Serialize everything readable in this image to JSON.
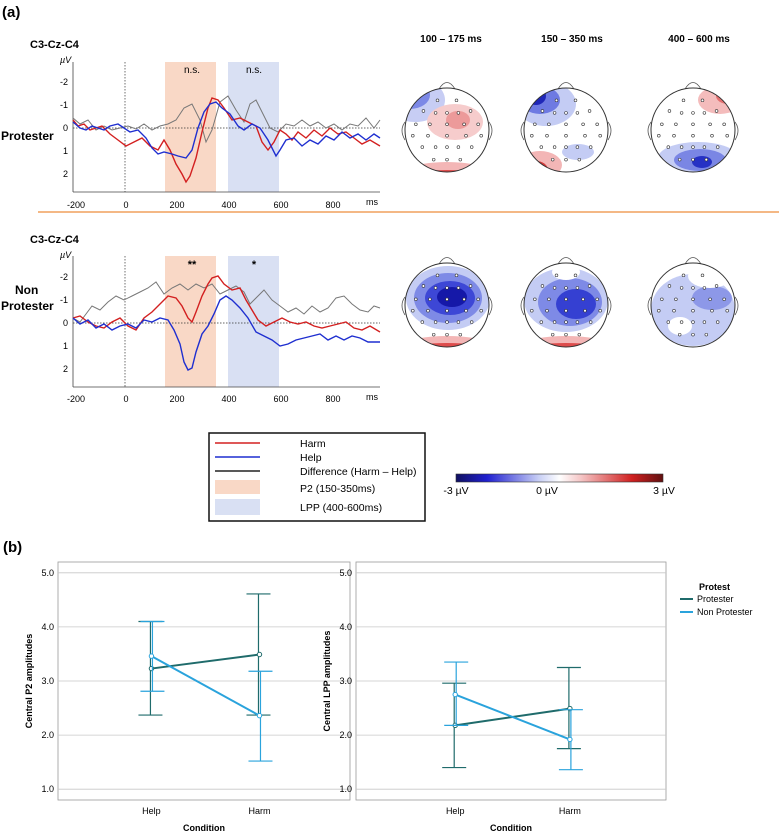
{
  "panel_a": {
    "label": "(a)",
    "erp_plots": [
      {
        "channel_label": "C3-Cz-C4",
        "group_label_lines": [
          "Protester"
        ],
        "y_unit": "µV",
        "y_ticks": [
          "-2",
          "-1",
          "0",
          "1",
          "2"
        ],
        "x_ticks": [
          "-200",
          "0",
          "200",
          "400",
          "600",
          "800"
        ],
        "x_unit": "ms",
        "p2_significance": "n.s.",
        "lpp_significance": "n.s."
      },
      {
        "channel_label": "C3-Cz-C4",
        "group_label_lines": [
          "Non",
          "Protester"
        ],
        "y_unit": "µV",
        "y_ticks": [
          "-2",
          "-1",
          "0",
          "1",
          "2"
        ],
        "x_ticks": [
          "-200",
          "0",
          "200",
          "400",
          "600",
          "800"
        ],
        "x_unit": "ms",
        "p2_significance": "**",
        "lpp_significance": "*"
      }
    ],
    "topo_headers": [
      "100 – 175 ms",
      "150 – 350  ms",
      "400 – 600 ms"
    ],
    "legend": {
      "items": [
        {
          "label": "Harm",
          "color": "#d32020",
          "kind": "line"
        },
        {
          "label": "Help",
          "color": "#1f2fd0",
          "kind": "line"
        },
        {
          "label": "Difference (Harm – Help)",
          "color": "#222222",
          "kind": "line"
        },
        {
          "label": "P2   (150-350ms)",
          "color": "#f9d8c6",
          "kind": "box"
        },
        {
          "label": "LPP (400-600ms)",
          "color": "#d9e0f3",
          "kind": "box"
        }
      ]
    },
    "colorbar": {
      "min_label": "-3 µV",
      "mid_label": "0 µV",
      "max_label": "3 µV"
    }
  },
  "panel_b": {
    "label": "(b)",
    "chart_data": [
      {
        "type": "line",
        "categories": [
          "Help",
          "Harm"
        ],
        "xlabel": "Condition",
        "ylabel": "Central P2 amplitudes",
        "ylim": [
          0.8,
          5.2
        ],
        "y_ticks": [
          "1.0",
          "2.0",
          "3.0",
          "4.0",
          "5.0"
        ],
        "series": [
          {
            "name": "Protester",
            "values": [
              3.23,
              3.49
            ],
            "err_low": [
              2.37,
              2.37
            ],
            "err_high": [
              4.1,
              4.61
            ]
          },
          {
            "name": "Non Protester",
            "values": [
              3.46,
              2.36
            ],
            "err_low": [
              2.81,
              1.52
            ],
            "err_high": [
              4.1,
              3.18
            ]
          }
        ]
      },
      {
        "type": "line",
        "categories": [
          "Help",
          "Harm"
        ],
        "xlabel": "Condition",
        "ylabel": "Central LPP amplitudes",
        "ylim": [
          0.8,
          5.2
        ],
        "y_ticks": [
          "1.0",
          "2.0",
          "3.0",
          "4.0",
          "5.0"
        ],
        "legend_title": "Protest",
        "series": [
          {
            "name": "Protester",
            "values": [
              2.18,
              2.49
            ],
            "err_low": [
              1.4,
              1.75
            ],
            "err_high": [
              2.96,
              3.25
            ]
          },
          {
            "name": "Non Protester",
            "values": [
              2.75,
              1.92
            ],
            "err_low": [
              2.18,
              1.36
            ],
            "err_high": [
              3.35,
              2.47
            ]
          }
        ]
      }
    ],
    "series_colors": {
      "Protester": "#1f6b6b",
      "Non Protester": "#2aa3dc"
    }
  }
}
